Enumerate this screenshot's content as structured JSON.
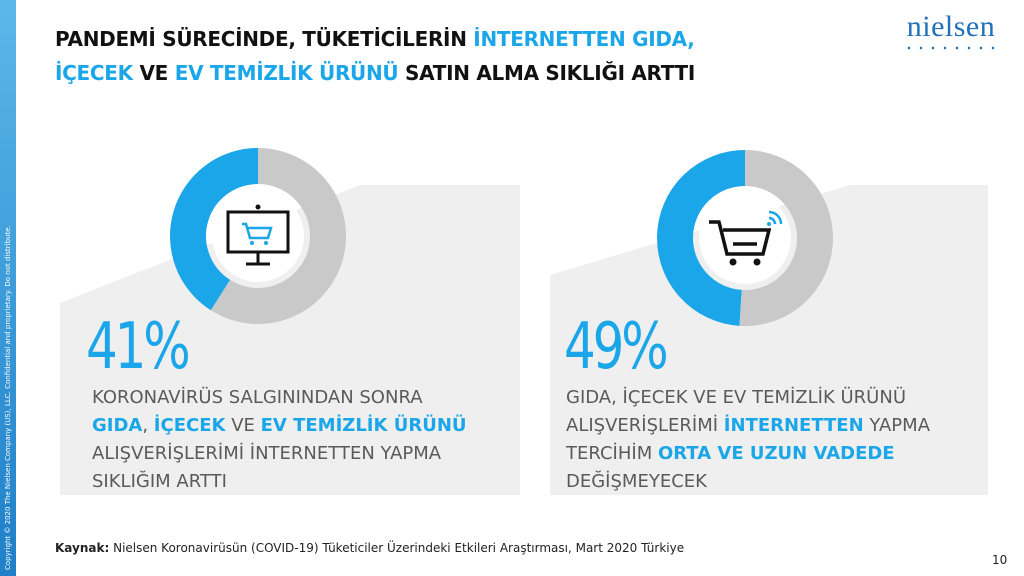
{
  "side_text": "Copyright © 2020 The Nielsen Company (US), LLC. Confidential and proprietary. Do not distribute.",
  "title": {
    "line1": [
      {
        "text": "PANDEMİ SÜRECİNDE, TÜKETİCİLERİN ",
        "highlight": false
      },
      {
        "text": "İNTERNETTEN GIDA,",
        "highlight": true
      }
    ],
    "line2": [
      {
        "text": "İÇECEK",
        "highlight": true
      },
      {
        "text": " VE ",
        "highlight": false
      },
      {
        "text": "EV TEMİZLİK ÜRÜNÜ",
        "highlight": true
      },
      {
        "text": " SATIN ALMA SIKLIĞI ARTTI",
        "highlight": false
      }
    ]
  },
  "logo": "nielsen",
  "colors": {
    "accent": "#1aa6e8",
    "ring_rest": "#c9c9c9",
    "panel": "#efefef"
  },
  "chart_data": [
    {
      "type": "pie",
      "title": "",
      "categories": [
        "",
        ""
      ],
      "values": [
        41,
        59
      ],
      "label": "41%",
      "icon": "monitor-cart-icon",
      "description": [
        [
          {
            "text": "KORONAVİRÜS SALGININDAN SONRA",
            "highlight": false
          }
        ],
        [
          {
            "text": "GIDA",
            "highlight": true
          },
          {
            "text": ", ",
            "highlight": false
          },
          {
            "text": "İÇECEK",
            "highlight": true
          },
          {
            "text": " VE ",
            "highlight": false
          },
          {
            "text": "EV TEMİZLİK ÜRÜNÜ",
            "highlight": true
          }
        ],
        [
          {
            "text": "ALIŞVERİŞLERİMİ İNTERNETTEN YAPMA",
            "highlight": false
          }
        ],
        [
          {
            "text": "SIKLIĞIM ARTTI",
            "highlight": false
          }
        ]
      ]
    },
    {
      "type": "pie",
      "title": "",
      "categories": [
        "",
        ""
      ],
      "values": [
        49,
        51
      ],
      "label": "49%",
      "icon": "shopping-cart-wifi-icon",
      "description": [
        [
          {
            "text": "GIDA, İÇECEK VE EV TEMİZLİK ÜRÜNÜ",
            "highlight": false
          }
        ],
        [
          {
            "text": "ALIŞVERİŞLERİMİ  ",
            "highlight": false
          },
          {
            "text": "İNTERNETTEN",
            "highlight": true
          },
          {
            "text": " YAPMA",
            "highlight": false
          }
        ],
        [
          {
            "text": "TERCİHİM ",
            "highlight": false
          },
          {
            "text": "ORTA VE UZUN VADEDE",
            "highlight": true
          }
        ],
        [
          {
            "text": "DEĞİŞMEYECEK",
            "highlight": false
          }
        ]
      ]
    }
  ],
  "source": {
    "label": "Kaynak:",
    "text": " Nielsen Koronavirüsün (COVID-19) Tüketiciler Üzerindeki Etkileri Araştırması, Mart 2020 Türkiye"
  },
  "page_number": "10"
}
